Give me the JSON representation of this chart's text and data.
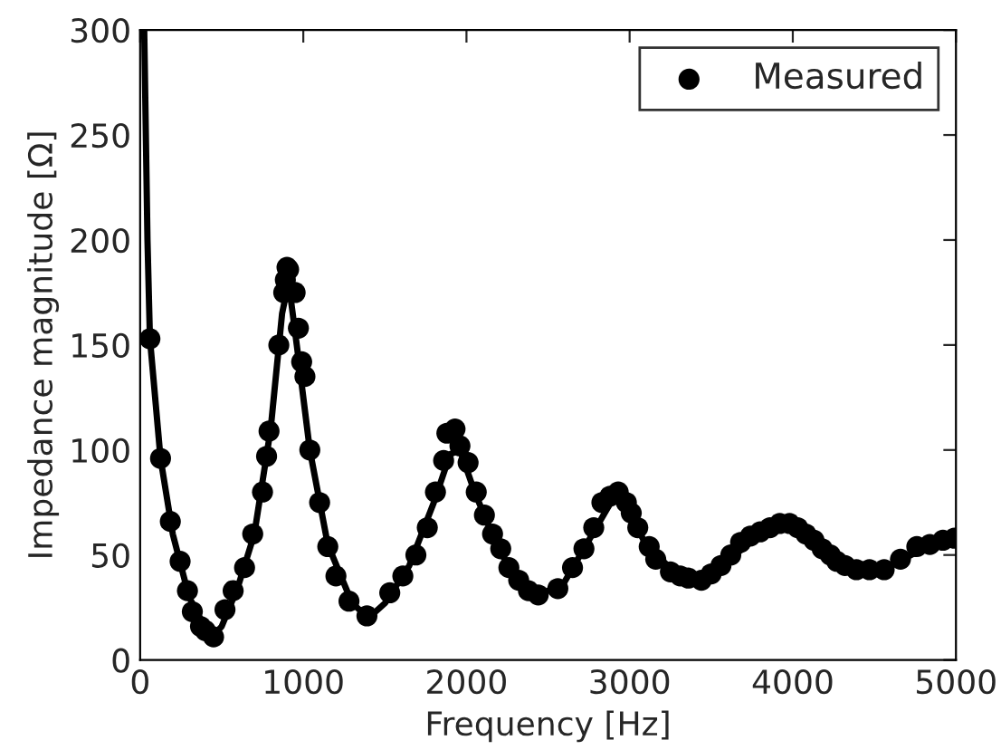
{
  "chart_data": {
    "type": "scatter",
    "xlabel": "Frequency [Hz]",
    "ylabel": "Impedance magnitude [Ω]",
    "xlim": [
      0,
      5000
    ],
    "xticks": [
      0,
      1000,
      2000,
      3000,
      4000,
      5000
    ],
    "ylim": [
      0,
      300
    ],
    "yticks": [
      0,
      50,
      100,
      150,
      200,
      250,
      300
    ],
    "grid": false,
    "legend": "top right",
    "series": [
      {
        "name": "Measured",
        "marker": "circle",
        "color": "#000000",
        "x": [
          60,
          125,
          185,
          245,
          290,
          320,
          370,
          400,
          450,
          520,
          570,
          640,
          690,
          750,
          775,
          790,
          850,
          880,
          890,
          900,
          910,
          950,
          970,
          990,
          1010,
          1040,
          1100,
          1150,
          1200,
          1280,
          1390,
          1530,
          1610,
          1690,
          1760,
          1810,
          1860,
          1880,
          1930,
          1960,
          2010,
          2060,
          2110,
          2160,
          2210,
          2260,
          2320,
          2380,
          2440,
          2560,
          2650,
          2720,
          2780,
          2830,
          2880,
          2930,
          2980,
          3010,
          3050,
          3120,
          3160,
          3250,
          3310,
          3360,
          3440,
          3500,
          3560,
          3620,
          3680,
          3740,
          3800,
          3860,
          3920,
          3980,
          4030,
          4080,
          4130,
          4180,
          4230,
          4270,
          4320,
          4390,
          4470,
          4560,
          4660,
          4760,
          4840,
          4920,
          4990
        ],
        "values": [
          153,
          96,
          66,
          47,
          33,
          23,
          16,
          14,
          11,
          24,
          33,
          44,
          60,
          80,
          97,
          109,
          150,
          175,
          181,
          187,
          186,
          175,
          158,
          142,
          135,
          100,
          75,
          54,
          40,
          28,
          21,
          32,
          40,
          50,
          63,
          80,
          95,
          108,
          110,
          102,
          94,
          80,
          69,
          60,
          53,
          44,
          38,
          33,
          31,
          34,
          44,
          53,
          63,
          75,
          78,
          80,
          75,
          70,
          63,
          54,
          48,
          42,
          40,
          39,
          38,
          41,
          45,
          50,
          56,
          59,
          61,
          63,
          65,
          65,
          63,
          60,
          57,
          53,
          50,
          47,
          45,
          43,
          43,
          43,
          48,
          54,
          55,
          57,
          58
        ]
      },
      {
        "type": "line",
        "line_style": "solid",
        "marker": "none",
        "color": "#000000",
        "x": [
          25,
          45,
          60,
          125,
          200,
          300,
          400,
          450,
          500,
          600,
          700,
          800,
          870,
          910,
          960,
          1040,
          1150,
          1300,
          1400,
          1500,
          1650,
          1800,
          1900,
          1960,
          2050,
          2200,
          2350,
          2450,
          2600,
          2750,
          2900,
          2950,
          3100,
          3300,
          3420,
          3600,
          3800,
          3950,
          4100,
          4300,
          4450,
          4600,
          4800,
          5000
        ],
        "values": [
          300,
          200,
          153,
          96,
          60,
          30,
          15,
          12,
          16,
          35,
          60,
          110,
          165,
          180,
          150,
          100,
          55,
          27,
          20,
          27,
          45,
          75,
          98,
          100,
          80,
          52,
          35,
          31,
          37,
          57,
          77,
          77,
          55,
          40,
          37,
          47,
          60,
          64,
          58,
          46,
          42,
          45,
          53,
          57
        ]
      }
    ]
  }
}
